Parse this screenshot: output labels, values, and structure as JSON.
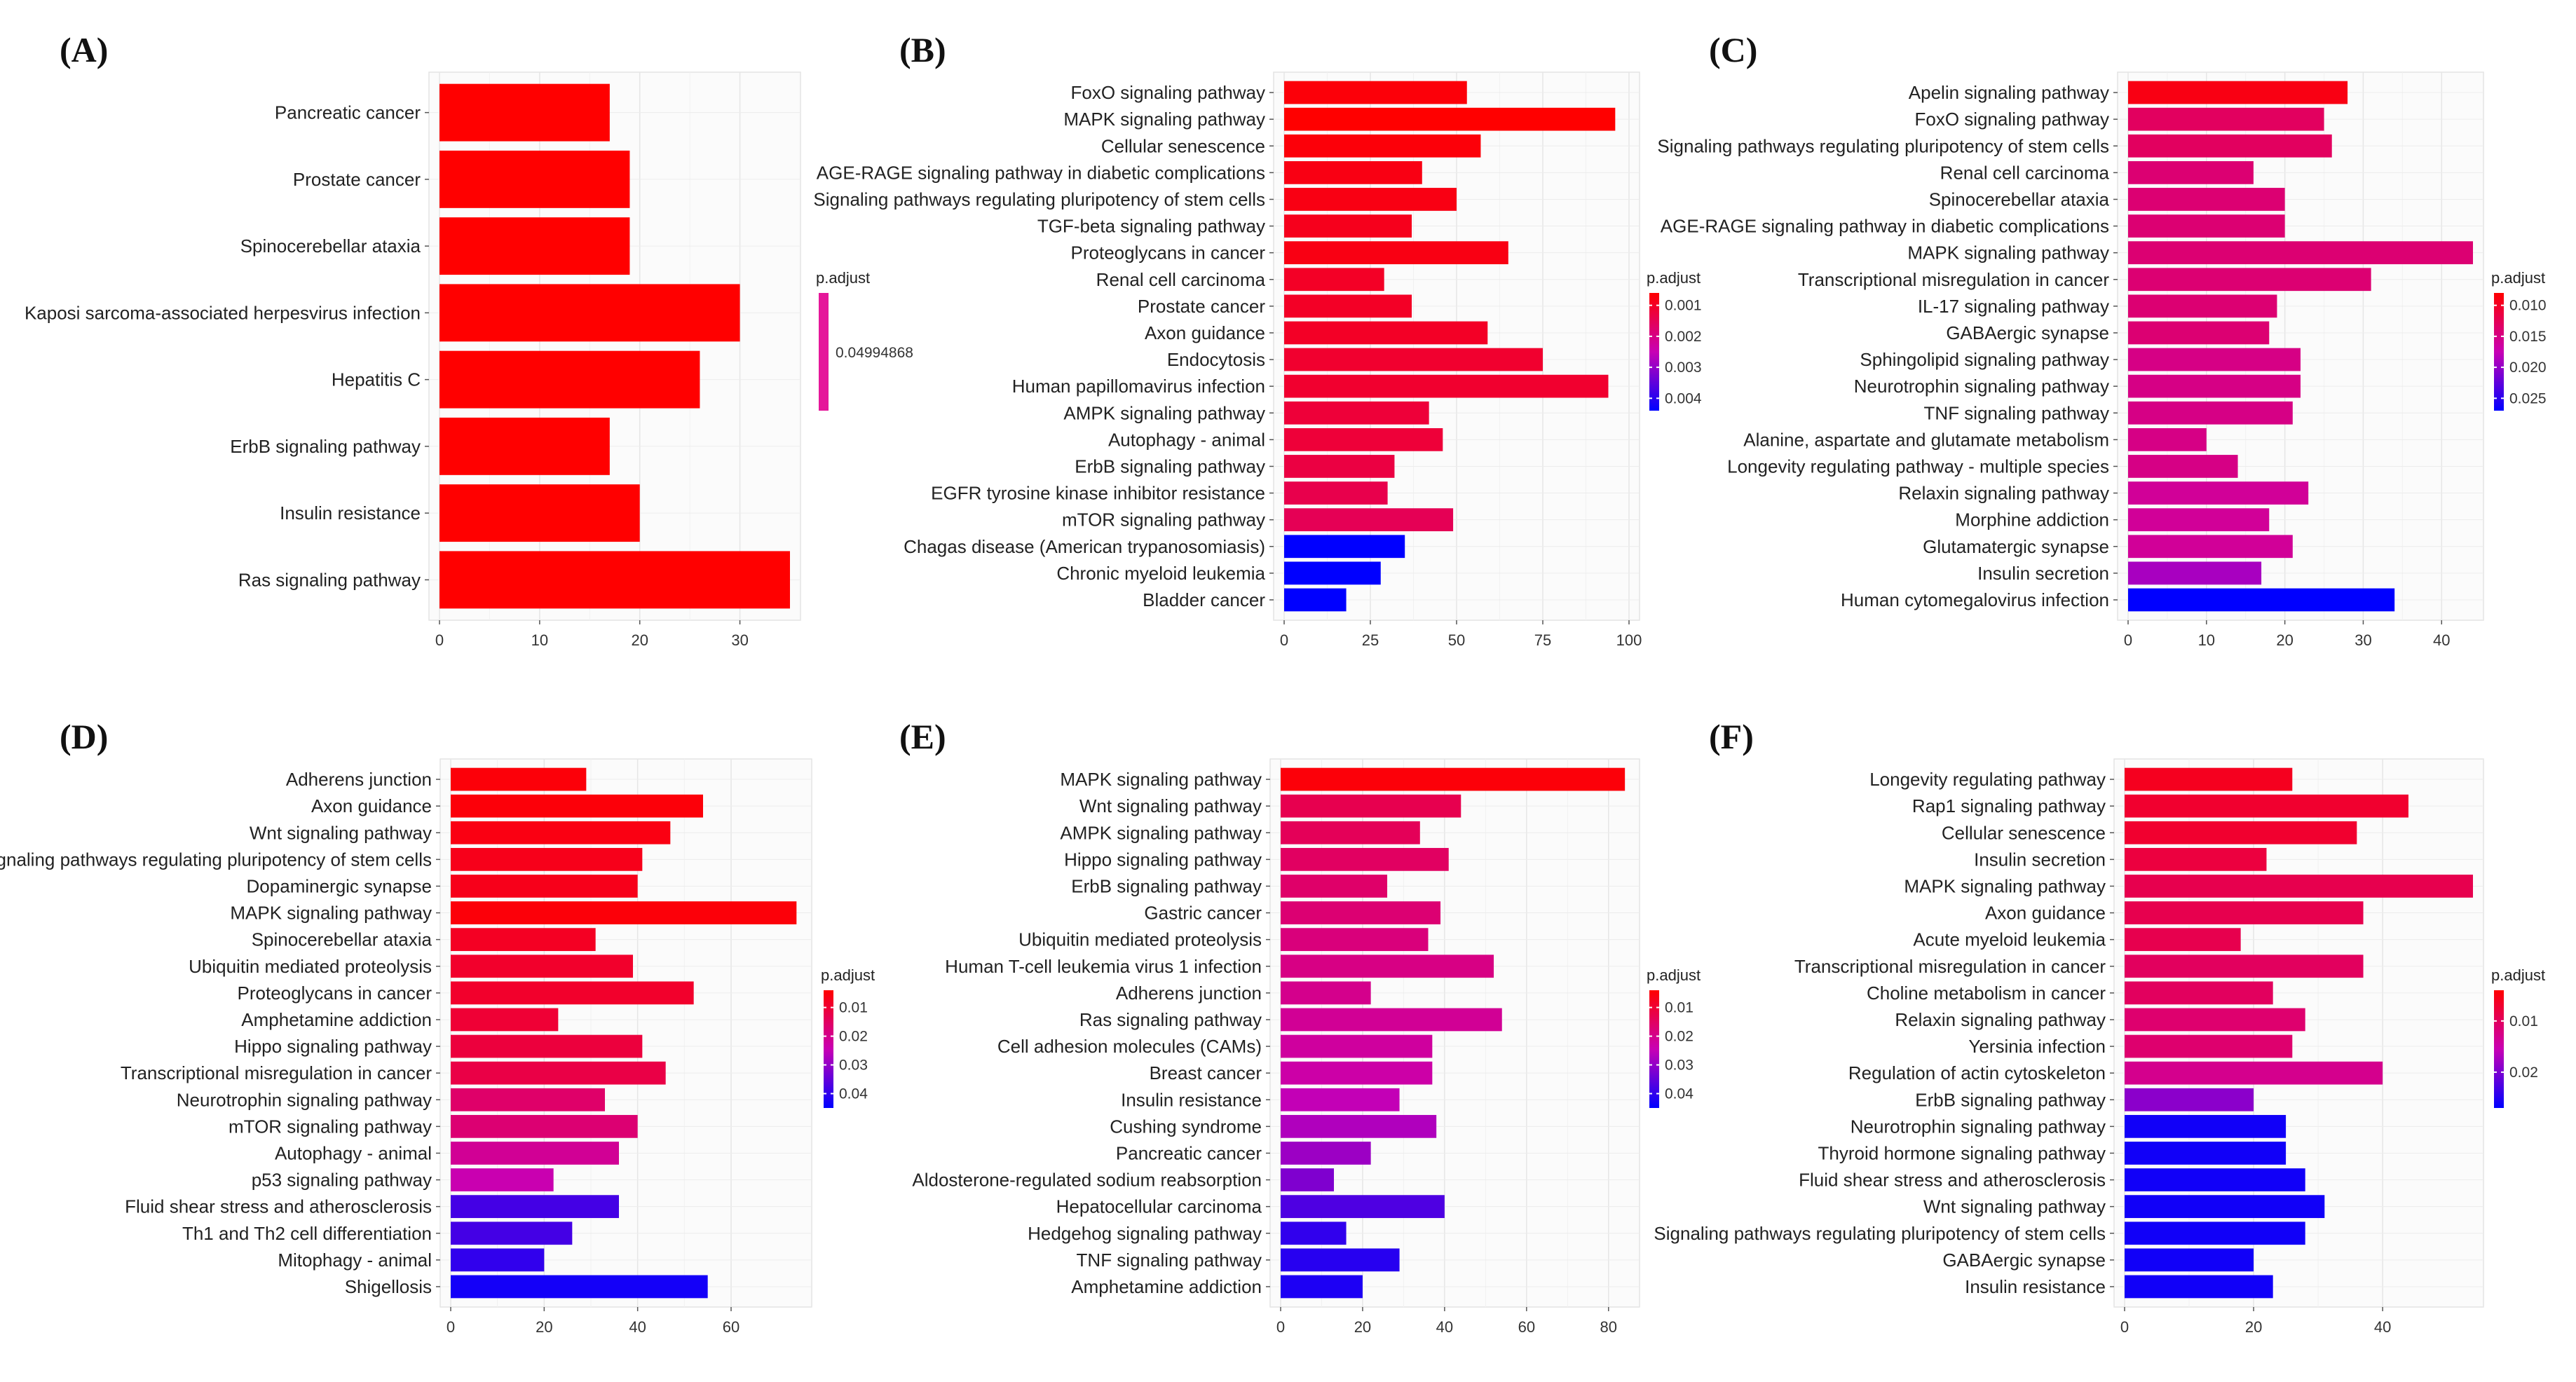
{
  "chart_data": [
    {
      "panel": "(A)",
      "type": "bar",
      "orientation": "horizontal",
      "xlim": [
        0,
        35
      ],
      "xticks": [
        0,
        10,
        20,
        30
      ],
      "legend_title": "p.adjust",
      "legend_ticks": [
        "0.04994868"
      ],
      "legend_range": [
        0.04994868,
        0.04994868
      ],
      "categories": [
        "Pancreatic cancer",
        "Prostate cancer",
        "Spinocerebellar ataxia",
        "Kaposi sarcoma-associated herpesvirus infection",
        "Hepatitis C",
        "ErbB signaling pathway",
        "Insulin resistance",
        "Ras signaling pathway"
      ],
      "values": [
        17,
        19,
        19,
        30,
        26,
        17,
        20,
        35
      ],
      "padj": [
        0.04994868,
        0.04994868,
        0.04994868,
        0.04994868,
        0.04994868,
        0.04994868,
        0.04994868,
        0.04994868
      ]
    },
    {
      "panel": "(B)",
      "type": "bar",
      "orientation": "horizontal",
      "xlim": [
        0,
        100
      ],
      "xticks": [
        0,
        25,
        50,
        75,
        100
      ],
      "legend_title": "p.adjust",
      "legend_ticks": [
        "0.001",
        "0.002",
        "0.003",
        "0.004"
      ],
      "legend_range": [
        0.0006,
        0.0044
      ],
      "categories": [
        "FoxO signaling pathway",
        "MAPK signaling pathway",
        "Cellular senescence",
        "AGE-RAGE signaling pathway in diabetic complications",
        "Signaling pathways regulating pluripotency of stem cells",
        "TGF-beta signaling pathway",
        "Proteoglycans in cancer",
        "Renal cell carcinoma",
        "Prostate cancer",
        "Axon guidance",
        "Endocytosis",
        "Human papillomavirus infection",
        "AMPK signaling pathway",
        "Autophagy - animal",
        "ErbB signaling pathway",
        "EGFR tyrosine kinase inhibitor resistance",
        "mTOR signaling pathway",
        "Chagas disease (American trypanosomiasis)",
        "Chronic myeloid leukemia",
        "Bladder cancer"
      ],
      "values": [
        53,
        96,
        57,
        40,
        50,
        37,
        65,
        29,
        37,
        59,
        75,
        94,
        42,
        46,
        32,
        30,
        49,
        35,
        28,
        18
      ],
      "padj": [
        0.0007,
        0.0006,
        0.0007,
        0.0008,
        0.0008,
        0.0009,
        0.0008,
        0.001,
        0.001,
        0.001,
        0.0011,
        0.0011,
        0.0012,
        0.0012,
        0.0013,
        0.0014,
        0.0015,
        0.0044,
        0.0044,
        0.0044
      ]
    },
    {
      "panel": "(C)",
      "type": "bar",
      "orientation": "horizontal",
      "xlim": [
        0,
        44
      ],
      "xticks": [
        0,
        10,
        20,
        30,
        40
      ],
      "legend_title": "p.adjust",
      "legend_ticks": [
        "0.010",
        "0.015",
        "0.020",
        "0.025"
      ],
      "legend_range": [
        0.008,
        0.027
      ],
      "categories": [
        "Apelin signaling pathway",
        "FoxO signaling pathway",
        "Signaling pathways regulating pluripotency of stem cells",
        "Renal cell carcinoma",
        "Spinocerebellar ataxia",
        "AGE-RAGE signaling pathway in diabetic complications",
        "MAPK signaling pathway",
        "Transcriptional misregulation in cancer",
        "IL-17 signaling pathway",
        "GABAergic synapse",
        "Sphingolipid signaling pathway",
        "Neurotrophin signaling pathway",
        "TNF signaling pathway",
        "Alanine, aspartate and glutamate metabolism",
        "Longevity regulating pathway - multiple species",
        "Relaxin signaling pathway",
        "Morphine addiction",
        "Glutamatergic synapse",
        "Insulin secretion",
        "Human cytomegalovirus infection"
      ],
      "values": [
        28,
        25,
        26,
        16,
        20,
        20,
        44,
        31,
        19,
        18,
        22,
        22,
        21,
        10,
        14,
        23,
        18,
        21,
        17,
        34
      ],
      "padj": [
        0.009,
        0.013,
        0.013,
        0.014,
        0.014,
        0.014,
        0.014,
        0.014,
        0.014,
        0.014,
        0.015,
        0.015,
        0.015,
        0.015,
        0.015,
        0.016,
        0.016,
        0.016,
        0.019,
        0.027
      ]
    },
    {
      "panel": "(D)",
      "type": "bar",
      "orientation": "horizontal",
      "xlim": [
        0,
        75
      ],
      "xticks": [
        0,
        20,
        40,
        60
      ],
      "legend_title": "p.adjust",
      "legend_ticks": [
        "0.01",
        "0.02",
        "0.03",
        "0.04"
      ],
      "legend_range": [
        0.004,
        0.045
      ],
      "categories": [
        "Adherens junction",
        "Axon guidance",
        "Wnt signaling pathway",
        "Signaling pathways regulating pluripotency of stem cells",
        "Dopaminergic synapse",
        "MAPK signaling pathway",
        "Spinocerebellar ataxia",
        "Ubiquitin mediated proteolysis",
        "Proteoglycans in cancer",
        "Amphetamine addiction",
        "Hippo signaling pathway",
        "Transcriptional misregulation in cancer",
        "Neurotrophin signaling pathway",
        "mTOR signaling pathway",
        "Autophagy - animal",
        "p53 signaling pathway",
        "Fluid shear stress and atherosclerosis",
        "Th1 and Th2 cell differentiation",
        "Mitophagy - animal",
        "Shigellosis"
      ],
      "values": [
        29,
        54,
        47,
        41,
        40,
        74,
        31,
        39,
        52,
        23,
        41,
        46,
        33,
        40,
        36,
        22,
        36,
        26,
        20,
        55
      ],
      "padj": [
        0.005,
        0.005,
        0.006,
        0.007,
        0.007,
        0.005,
        0.008,
        0.009,
        0.009,
        0.01,
        0.011,
        0.012,
        0.016,
        0.017,
        0.021,
        0.024,
        0.038,
        0.038,
        0.04,
        0.043
      ]
    },
    {
      "panel": "(E)",
      "type": "bar",
      "orientation": "horizontal",
      "xlim": [
        0,
        85
      ],
      "xticks": [
        0,
        20,
        40,
        60,
        80
      ],
      "legend_title": "p.adjust",
      "legend_ticks": [
        "0.01",
        "0.02",
        "0.03",
        "0.04"
      ],
      "legend_range": [
        0.004,
        0.045
      ],
      "categories": [
        "MAPK signaling pathway",
        "Wnt signaling pathway",
        "AMPK signaling pathway",
        "Hippo signaling pathway",
        "ErbB signaling pathway",
        "Gastric cancer",
        "Ubiquitin mediated proteolysis",
        "Human T-cell leukemia virus 1 infection",
        "Adherens junction",
        "Ras signaling pathway",
        "Cell adhesion molecules (CAMs)",
        "Breast cancer",
        "Insulin resistance",
        "Cushing syndrome",
        "Pancreatic cancer",
        "Aldosterone-regulated sodium reabsorption",
        "Hepatocellular carcinoma",
        "Hedgehog signaling pathway",
        "TNF signaling pathway",
        "Amphetamine addiction"
      ],
      "values": [
        84,
        44,
        34,
        41,
        26,
        39,
        36,
        52,
        22,
        54,
        37,
        37,
        29,
        38,
        22,
        13,
        40,
        16,
        29,
        20
      ],
      "padj": [
        0.005,
        0.013,
        0.014,
        0.015,
        0.016,
        0.017,
        0.018,
        0.019,
        0.02,
        0.021,
        0.022,
        0.023,
        0.025,
        0.027,
        0.029,
        0.032,
        0.037,
        0.04,
        0.041,
        0.042
      ]
    },
    {
      "panel": "(F)",
      "type": "bar",
      "orientation": "horizontal",
      "xlim": [
        0,
        54
      ],
      "xticks": [
        0,
        20,
        40
      ],
      "legend_title": "p.adjust",
      "legend_ticks": [
        "0.01",
        "0.02"
      ],
      "legend_range": [
        0.004,
        0.027
      ],
      "categories": [
        "Longevity regulating pathway",
        "Rap1 signaling pathway",
        "Cellular senescence",
        "Insulin secretion",
        "MAPK signaling pathway",
        "Axon guidance",
        "Acute myeloid leukemia",
        "Transcriptional misregulation in cancer",
        "Choline metabolism in cancer",
        "Relaxin signaling pathway",
        "Yersinia infection",
        "Regulation of actin cytoskeleton",
        "ErbB signaling pathway",
        "Neurotrophin signaling pathway",
        "Thyroid hormone signaling pathway",
        "Fluid shear stress and atherosclerosis",
        "Wnt signaling pathway",
        "Signaling pathways regulating pluripotency of stem cells",
        "GABAergic synapse",
        "Insulin resistance"
      ],
      "values": [
        26,
        44,
        36,
        22,
        54,
        37,
        18,
        37,
        23,
        28,
        26,
        40,
        20,
        25,
        25,
        28,
        31,
        28,
        20,
        23
      ],
      "padj": [
        0.006,
        0.007,
        0.007,
        0.008,
        0.009,
        0.009,
        0.009,
        0.01,
        0.01,
        0.011,
        0.011,
        0.013,
        0.019,
        0.026,
        0.026,
        0.026,
        0.026,
        0.026,
        0.026,
        0.026
      ]
    }
  ]
}
